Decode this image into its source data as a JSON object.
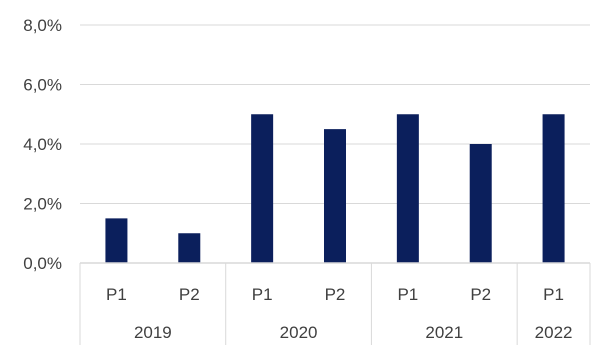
{
  "chart_data": {
    "type": "bar",
    "title": "",
    "xlabel": "",
    "ylabel": "",
    "ylim": [
      0,
      8
    ],
    "y_ticks": [
      "0,0%",
      "2,0%",
      "4,0%",
      "6,0%",
      "8,0%"
    ],
    "y_tick_values": [
      0,
      2,
      4,
      6,
      8
    ],
    "categories": [
      "P1",
      "P2",
      "P1",
      "P2",
      "P1",
      "P2",
      "P1"
    ],
    "groups": [
      {
        "label": "2019",
        "count": 2
      },
      {
        "label": "2020",
        "count": 2
      },
      {
        "label": "2021",
        "count": 2
      },
      {
        "label": "2022",
        "count": 1
      }
    ],
    "values": [
      1.5,
      1.0,
      5.0,
      4.5,
      5.0,
      4.0,
      5.0
    ],
    "grid": true,
    "legend": "none",
    "bar_color": "#0b1f5c",
    "grid_color": "#d9d9d9"
  }
}
